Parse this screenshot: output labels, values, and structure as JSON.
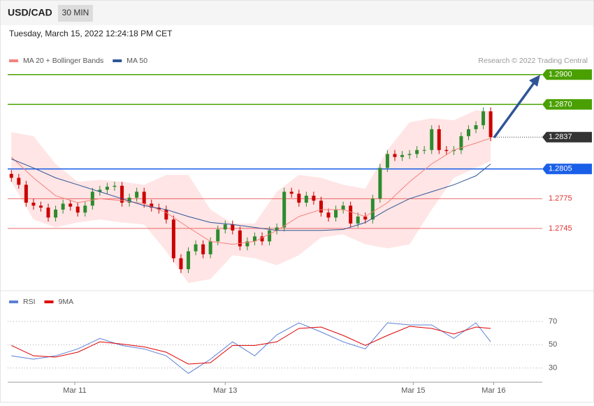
{
  "header": {
    "symbol": "USD/CAD",
    "interval": "30 MIN",
    "timestamp": "Tuesday, March 15, 2022 12:24:18 PM CET"
  },
  "chart_data": [
    {
      "type": "candlestick",
      "credit": "Research © 2022 Trading Central",
      "up_color": "#2e8b2e",
      "down_color": "#cc0000",
      "open": [
        1.28,
        1.2796,
        1.2789,
        1.2771,
        1.2768,
        1.2766,
        1.2756,
        1.2764,
        1.277,
        1.2767,
        1.2761,
        1.2768,
        1.2782,
        1.2784,
        1.2787,
        1.2788,
        1.2771,
        1.2776,
        1.2782,
        1.277,
        1.2766,
        1.2764,
        1.2754,
        1.2715,
        1.2704,
        1.2722,
        1.2729,
        1.2719,
        1.2732,
        1.2744,
        1.2749,
        1.2743,
        1.2727,
        1.2732,
        1.2737,
        1.2732,
        1.2743,
        1.2746,
        1.2782,
        1.278,
        1.2771,
        1.2778,
        1.2773,
        1.2761,
        1.2756,
        1.2764,
        1.2768,
        1.275,
        1.2757,
        1.2754,
        1.2775,
        1.2806,
        1.282,
        1.2817,
        1.2819,
        1.282,
        1.2824,
        1.2824,
        1.2845,
        1.2824,
        1.2823,
        1.2824,
        1.2838,
        1.2845,
        1.2849,
        1.2863
      ],
      "high": [
        1.2804,
        1.28,
        1.2793,
        1.2775,
        1.2772,
        1.277,
        1.2768,
        1.2774,
        1.2774,
        1.2771,
        1.2772,
        1.2786,
        1.2788,
        1.2791,
        1.2792,
        1.2792,
        1.278,
        1.2786,
        1.2786,
        1.2774,
        1.277,
        1.2768,
        1.2758,
        1.2719,
        1.2726,
        1.2733,
        1.2733,
        1.2736,
        1.2748,
        1.2753,
        1.2753,
        1.2747,
        1.2736,
        1.2741,
        1.2741,
        1.2747,
        1.275,
        1.2786,
        1.2786,
        1.2784,
        1.2782,
        1.2782,
        1.2777,
        1.2765,
        1.2768,
        1.2772,
        1.2772,
        1.2761,
        1.2761,
        1.2779,
        1.281,
        1.2824,
        1.2824,
        1.2823,
        1.2824,
        1.2828,
        1.2828,
        1.2849,
        1.2849,
        1.2828,
        1.2828,
        1.2842,
        1.2849,
        1.2853,
        1.2867,
        1.2867
      ],
      "low": [
        1.2792,
        1.2785,
        1.2767,
        1.2764,
        1.2762,
        1.2752,
        1.2752,
        1.276,
        1.2763,
        1.2757,
        1.2757,
        1.2764,
        1.2778,
        1.278,
        1.2783,
        1.2767,
        1.2767,
        1.2772,
        1.2766,
        1.2762,
        1.276,
        1.275,
        1.2711,
        1.27,
        1.27,
        1.2718,
        1.2715,
        1.2715,
        1.2728,
        1.274,
        1.2739,
        1.2723,
        1.2723,
        1.2728,
        1.2728,
        1.2728,
        1.2739,
        1.2742,
        1.2776,
        1.2767,
        1.2767,
        1.2769,
        1.2757,
        1.2752,
        1.2752,
        1.276,
        1.2746,
        1.2746,
        1.275,
        1.275,
        1.2771,
        1.2802,
        1.2813,
        1.2813,
        1.2815,
        1.2816,
        1.282,
        1.282,
        1.282,
        1.2819,
        1.2819,
        1.282,
        1.2834,
        1.2841,
        1.2845,
        1.2833
      ],
      "close": [
        1.2796,
        1.2789,
        1.2771,
        1.2768,
        1.2766,
        1.2756,
        1.2764,
        1.277,
        1.2767,
        1.2761,
        1.2768,
        1.2782,
        1.2784,
        1.2787,
        1.2788,
        1.2771,
        1.2776,
        1.2782,
        1.277,
        1.2766,
        1.2764,
        1.2754,
        1.2715,
        1.2704,
        1.2722,
        1.2729,
        1.2719,
        1.2732,
        1.2744,
        1.2749,
        1.2743,
        1.2727,
        1.2732,
        1.2737,
        1.2732,
        1.2743,
        1.2746,
        1.2782,
        1.278,
        1.2771,
        1.2778,
        1.2773,
        1.2761,
        1.2756,
        1.2764,
        1.2768,
        1.275,
        1.2757,
        1.2754,
        1.2775,
        1.2806,
        1.282,
        1.2817,
        1.2819,
        1.282,
        1.2824,
        1.2824,
        1.2845,
        1.2824,
        1.2823,
        1.2824,
        1.2838,
        1.2845,
        1.2849,
        1.2863,
        1.2837
      ],
      "xlim": [
        -0.5,
        72
      ],
      "ylim": [
        1.2683,
        1.2947
      ],
      "series": [
        {
          "name": "MA 20 + Bollinger Bands",
          "color": "#f4827c",
          "band_color": "#ffdcdc",
          "x": [
            0,
            3,
            6,
            9,
            12,
            15,
            18,
            21,
            24,
            27,
            30,
            33,
            36,
            39,
            42,
            45,
            48,
            51,
            54,
            57,
            60,
            63,
            65
          ],
          "values": [
            1.2817,
            1.2796,
            1.2778,
            1.2771,
            1.2775,
            1.2773,
            1.277,
            1.2761,
            1.2746,
            1.2732,
            1.2729,
            1.2732,
            1.2743,
            1.2757,
            1.2764,
            1.2764,
            1.2757,
            1.2771,
            1.2792,
            1.281,
            1.2824,
            1.2831,
            1.2836
          ],
          "upper": [
            1.2842,
            1.2838,
            1.281,
            1.2792,
            1.2794,
            1.2792,
            1.2789,
            1.2799,
            1.2799,
            1.2764,
            1.275,
            1.275,
            1.2782,
            1.2799,
            1.2796,
            1.2789,
            1.2785,
            1.2824,
            1.2852,
            1.2856,
            1.2854,
            1.2864,
            1.2863
          ],
          "lower": [
            1.2792,
            1.2754,
            1.2746,
            1.2751,
            1.2754,
            1.2751,
            1.2749,
            1.2722,
            1.269,
            1.2694,
            1.2718,
            1.2715,
            1.2708,
            1.2718,
            1.2736,
            1.2739,
            1.2729,
            1.2725,
            1.2729,
            1.2764,
            1.2796,
            1.2806,
            1.2813
          ]
        },
        {
          "name": "MA 50",
          "color": "#2f5597",
          "x": [
            0,
            3,
            6,
            9,
            12,
            15,
            18,
            21,
            24,
            27,
            30,
            33,
            36,
            39,
            42,
            45,
            48,
            51,
            54,
            57,
            60,
            63,
            65
          ],
          "values": [
            1.2815,
            1.2806,
            1.2796,
            1.2789,
            1.2782,
            1.2775,
            1.2768,
            1.2764,
            1.2757,
            1.2751,
            1.2749,
            1.2746,
            1.2743,
            1.2743,
            1.2743,
            1.2744,
            1.2751,
            1.2764,
            1.2775,
            1.2782,
            1.2789,
            1.2798,
            1.281
          ]
        }
      ],
      "levels": [
        {
          "value": 1.29,
          "label": "1.2900",
          "color": "#4aa000",
          "boxed": true
        },
        {
          "value": 1.287,
          "label": "1.2870",
          "color": "#4aa000",
          "boxed": true
        },
        {
          "value": 1.2837,
          "label": "1.2837",
          "color": "#333333",
          "boxed": true,
          "current": true
        },
        {
          "value": 1.2805,
          "label": "1.2805",
          "color": "#1a5fe8",
          "boxed": true
        },
        {
          "value": 1.2775,
          "label": "1.2775",
          "color": "#e03030",
          "boxed": false
        },
        {
          "value": 1.2745,
          "label": "1.2745",
          "color": "#e03030",
          "boxed": false
        }
      ]
    },
    {
      "type": "line",
      "xlim": [
        -0.5,
        72
      ],
      "ylim": [
        22,
        91
      ],
      "yticks": [
        30,
        50,
        70
      ],
      "xticks": [
        {
          "value": 8.6,
          "label": "Mar 11"
        },
        {
          "value": 29,
          "label": "Mar 13"
        },
        {
          "value": 54.5,
          "label": "Mar 15"
        },
        {
          "value": 65.4,
          "label": "Mar 16"
        }
      ],
      "series": [
        {
          "name": "RSI",
          "color": "#5b7fd6",
          "x": [
            0,
            3,
            6,
            9,
            12,
            15,
            18,
            21,
            24,
            27,
            30,
            33,
            36,
            39,
            42,
            45,
            48,
            51,
            54,
            57,
            60,
            63,
            65
          ],
          "values": [
            40.5,
            37.6,
            40.5,
            46.4,
            55.4,
            49.4,
            46.4,
            40.5,
            25.4,
            37.6,
            52.5,
            40.5,
            58.5,
            68.8,
            61.0,
            52.5,
            46.4,
            68.8,
            67.0,
            67.0,
            55.4,
            68.8,
            52.5
          ]
        },
        {
          "name": "9MA",
          "color": "#e00000",
          "x": [
            0,
            3,
            6,
            9,
            12,
            15,
            18,
            21,
            24,
            27,
            30,
            33,
            36,
            39,
            42,
            45,
            48,
            51,
            54,
            57,
            60,
            63,
            65
          ],
          "values": [
            49.4,
            40.5,
            39.4,
            43.6,
            52.5,
            50.6,
            48.2,
            43.6,
            33.4,
            34.6,
            49.4,
            49.4,
            52.5,
            64.0,
            65.2,
            58.0,
            49.4,
            58.0,
            65.8,
            64.0,
            59.2,
            65.2,
            64.0
          ]
        }
      ]
    }
  ]
}
